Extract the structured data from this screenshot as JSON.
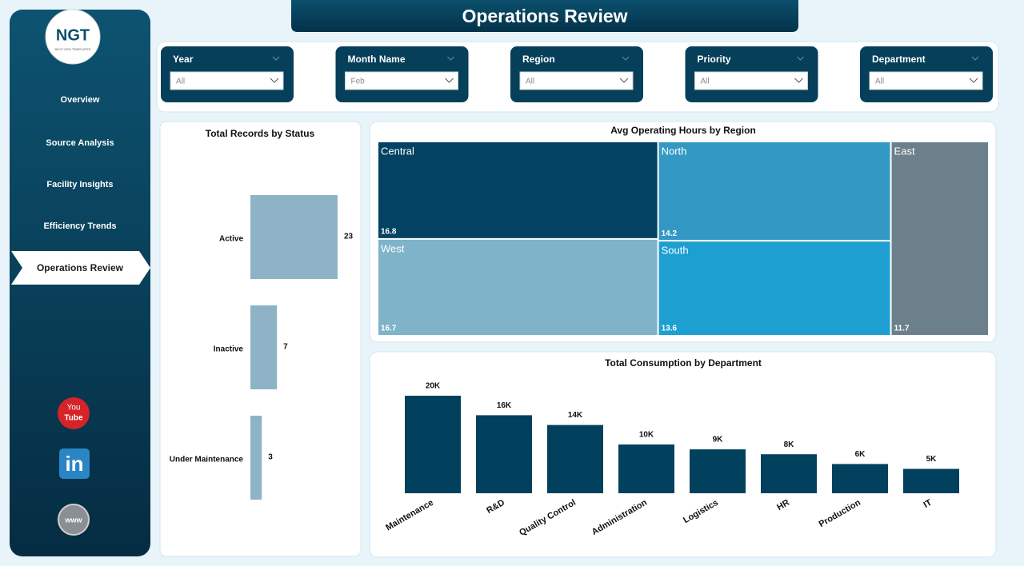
{
  "header": {
    "title": "Operations Review"
  },
  "logo": {
    "text": "NGT",
    "subtext": "NEXT GEN TEMPLATES"
  },
  "nav": [
    "Overview",
    "Source Analysis",
    "Facility Insights",
    "Efficiency Trends",
    "Operations Review"
  ],
  "nav_active": 4,
  "social": {
    "youtube": [
      "You",
      "Tube"
    ],
    "linkedin": "in",
    "web": "www"
  },
  "filters": [
    {
      "label": "Year",
      "value": "All"
    },
    {
      "label": "Month Name",
      "value": "Feb"
    },
    {
      "label": "Region",
      "value": "All"
    },
    {
      "label": "Priority",
      "value": "All"
    },
    {
      "label": "Department",
      "value": "All"
    }
  ],
  "chart_data": [
    {
      "type": "hbar",
      "title": "Total Records by Status",
      "categories": [
        "Active",
        "Inactive",
        "Under Maintenance"
      ],
      "values": [
        23,
        7,
        3
      ],
      "color": "#8fb3c6"
    },
    {
      "type": "treemap",
      "title": "Avg Operating Hours by Region",
      "categories": [
        "Central",
        "West",
        "North",
        "South",
        "East"
      ],
      "values": [
        16.8,
        16.7,
        14.2,
        13.6,
        11.7
      ],
      "colors": [
        "#034262",
        "#7fb3c9",
        "#3399c4",
        "#1e9fd2",
        "#6b808b"
      ]
    },
    {
      "type": "bar",
      "title": "Total Consumption by Department",
      "categories": [
        "Maintenance",
        "R&D",
        "Quality Control",
        "Administration",
        "Logistics",
        "HR",
        "Production",
        "IT"
      ],
      "values": [
        20000,
        16000,
        14000,
        10000,
        9000,
        8000,
        6000,
        5000
      ],
      "value_labels": [
        "20K",
        "16K",
        "14K",
        "10K",
        "9K",
        "8K",
        "6K",
        "5K"
      ],
      "color": "#02415e"
    }
  ]
}
